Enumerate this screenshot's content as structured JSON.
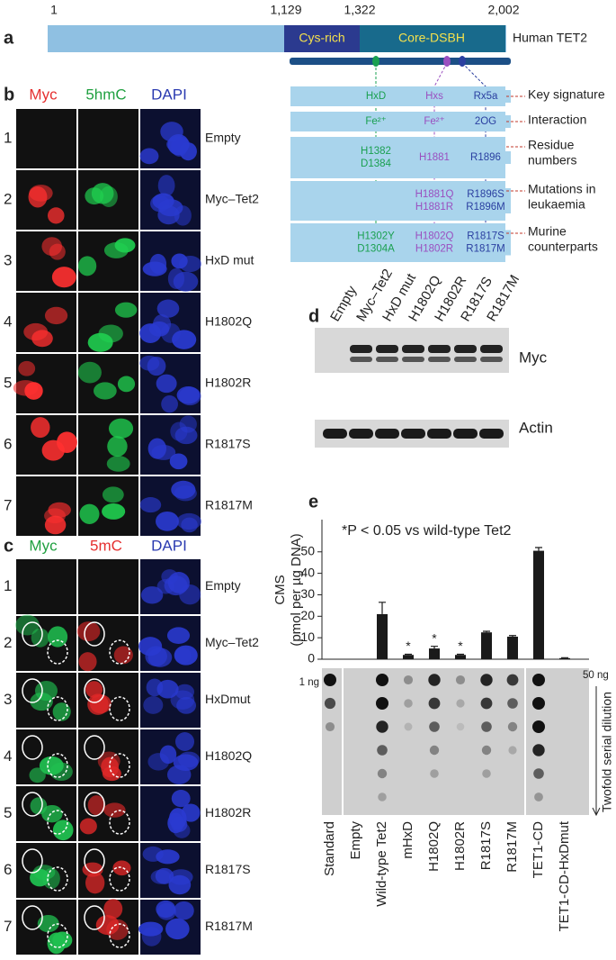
{
  "panel_a": {
    "panel_label": "a",
    "positions": [
      "1",
      "1,129",
      "1,322",
      "2,002"
    ],
    "domains": [
      "Cys-rich",
      "Core-DSBH"
    ],
    "protein": "Human TET2",
    "rows": [
      {
        "label": [
          "Key signature"
        ],
        "hxd": [
          "HxD"
        ],
        "hxs": [
          "Hxs"
        ],
        "rx5a": [
          "Rx5a"
        ]
      },
      {
        "label": [
          "Interaction"
        ],
        "hxd": [
          "Fe²⁺"
        ],
        "hxs": [
          "Fe²⁺"
        ],
        "rx5a": [
          "2OG"
        ]
      },
      {
        "label": [
          "Residue",
          "numbers"
        ],
        "hxd": [
          "H1382",
          "D1384"
        ],
        "hxs": [
          "H1881"
        ],
        "rx5a": [
          "R1896"
        ]
      },
      {
        "label": [
          "Mutations in",
          "leukaemia"
        ],
        "hxs": [
          "H1881Q",
          "H1881R"
        ],
        "rx5a": [
          "R1896S",
          "R1896M"
        ]
      },
      {
        "label": [
          "Murine",
          "counterparts"
        ],
        "hxd": [
          "H1302Y",
          "D1304A"
        ],
        "hxs": [
          "H1802Q",
          "H1802R"
        ],
        "rx5a": [
          "R1817S",
          "R1817M"
        ]
      }
    ]
  },
  "panel_b": {
    "panel_label": "b",
    "headers": [
      "Myc",
      "5hmC",
      "DAPI"
    ],
    "row_numbers": [
      "1",
      "2",
      "3",
      "4",
      "5",
      "6",
      "7"
    ],
    "row_labels": [
      "Empty",
      "Myc–Tet2",
      "HxD mut",
      "H1802Q",
      "H1802R",
      "R1817S",
      "R1817M"
    ]
  },
  "panel_c": {
    "panel_label": "c",
    "headers": [
      "Myc",
      "5mC",
      "DAPI"
    ],
    "row_numbers": [
      "1",
      "2",
      "3",
      "4",
      "5",
      "6",
      "7"
    ],
    "row_labels": [
      "Empty",
      "Myc–Tet2",
      "HxDmut",
      "H1802Q",
      "H1802R",
      "R1817S",
      "R1817M"
    ]
  },
  "panel_d": {
    "panel_label": "d",
    "lanes": [
      "Empty",
      "Myc–Tet2",
      "HxD mut",
      "H1802Q",
      "H1802R",
      "R1817S",
      "R1817M"
    ],
    "bands": [
      "Myc",
      "Actin"
    ]
  },
  "chart_data": {
    "type": "bar",
    "panel_label": "e",
    "annotation": "*P < 0.05 vs wild-type Tet2",
    "ylabel": [
      "CMS",
      "(pmol per µg DNA)"
    ],
    "categories": [
      "Standard",
      "Empty",
      "Wild-type Tet2",
      "mHxD",
      "H1802Q",
      "H1802R",
      "R1817S",
      "R1817M",
      "TET1-CD",
      "TET1-CD-HxDmut"
    ],
    "values": [
      null,
      0,
      21,
      2,
      5,
      2,
      12.5,
      10.5,
      50.5,
      0.5
    ],
    "errors": [
      null,
      null,
      5.5,
      0.3,
      1,
      0.3,
      0.5,
      0.5,
      1.5,
      0.2
    ],
    "stars": [
      null,
      null,
      null,
      "*",
      "*",
      "*",
      null,
      null,
      null,
      null
    ],
    "color": "#1a1a1a",
    "ylim": [
      0,
      65
    ],
    "yticks": [
      0,
      10,
      20,
      30,
      40,
      50
    ],
    "blot_labels": [
      "1 ng",
      "50 ng",
      "Twofold serial dilution"
    ]
  }
}
